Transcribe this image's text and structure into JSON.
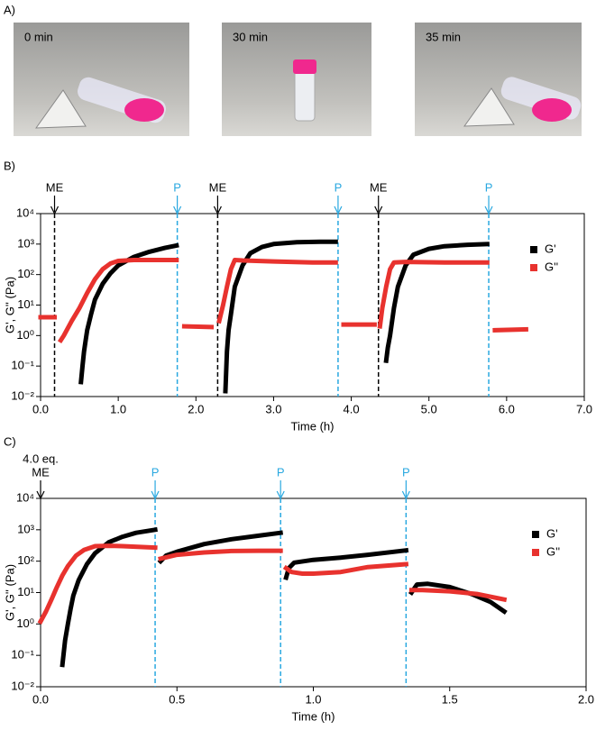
{
  "photos": [
    {
      "panel_label": "A)",
      "captions": [
        "0 min",
        "30 min",
        "35 min"
      ]
    }
  ],
  "chart_data": [
    {
      "type": "line",
      "panel_label": "B)",
      "x_label": "Time (h)",
      "y_label": "G', G'' (Pa)",
      "log_y": true,
      "legend": "upper right",
      "xlim": [
        0,
        7
      ],
      "ylim": [
        0.01,
        10000
      ],
      "xticks": [
        {
          "value": 0,
          "label": "0.0"
        },
        {
          "value": 1,
          "label": "1.0"
        },
        {
          "value": 2,
          "label": "2.0"
        },
        {
          "value": 3,
          "label": "3.0"
        },
        {
          "value": 4,
          "label": "4.0"
        },
        {
          "value": 5,
          "label": "5.0"
        },
        {
          "value": 6,
          "label": "6.0"
        },
        {
          "value": 7,
          "label": "7.0"
        }
      ],
      "yticks": [
        {
          "value": 0.01,
          "label": "10⁻²"
        },
        {
          "value": 0.1,
          "label": "10⁻¹"
        },
        {
          "value": 1,
          "label": "10⁰"
        },
        {
          "value": 10,
          "label": "10¹"
        },
        {
          "value": 100,
          "label": "10²"
        },
        {
          "value": 1000,
          "label": "10³"
        },
        {
          "value": 10000,
          "label": "10⁴"
        }
      ],
      "annotations": [
        {
          "lines": [
            "ME"
          ],
          "x": 0.18,
          "color": "#000000"
        },
        {
          "lines": [
            "P"
          ],
          "x": 1.76,
          "color": "#29a8e0"
        },
        {
          "lines": [
            "ME"
          ],
          "x": 2.28,
          "color": "#000000"
        },
        {
          "lines": [
            "P"
          ],
          "x": 3.83,
          "color": "#29a8e0"
        },
        {
          "lines": [
            "ME"
          ],
          "x": 4.35,
          "color": "#000000"
        },
        {
          "lines": [
            "P"
          ],
          "x": 5.77,
          "color": "#29a8e0"
        }
      ],
      "series": [
        {
          "name": "G'",
          "color": "#000000",
          "x": [
            0.52,
            0.54,
            0.56,
            0.58,
            0.6,
            0.65,
            0.7,
            0.8,
            0.9,
            1.0,
            1.2,
            1.4,
            1.6,
            1.75,
            null,
            2.38,
            2.4,
            2.42,
            2.45,
            2.5,
            2.6,
            2.7,
            2.85,
            3.0,
            3.3,
            3.6,
            3.8,
            null,
            4.45,
            4.47,
            4.5,
            4.55,
            4.6,
            4.7,
            4.8,
            5.0,
            5.2,
            5.5,
            5.75
          ],
          "values": [
            0.03,
            0.1,
            0.3,
            0.7,
            1.5,
            5,
            15,
            50,
            110,
            200,
            380,
            560,
            750,
            900,
            null,
            0.015,
            0.3,
            1.5,
            5,
            40,
            200,
            500,
            800,
            1000,
            1150,
            1200,
            1200,
            null,
            0.15,
            0.4,
            1,
            8,
            40,
            200,
            450,
            700,
            850,
            950,
            1000
          ]
        },
        {
          "name": "G''",
          "color": "#e8322e",
          "x": [
            0,
            0.18,
            null,
            0.26,
            0.3,
            0.4,
            0.5,
            0.6,
            0.7,
            0.8,
            0.9,
            1.0,
            1.2,
            1.5,
            1.75,
            null,
            1.85,
            2.2,
            null,
            2.3,
            2.35,
            2.4,
            2.45,
            2.5,
            2.6,
            3.0,
            3.5,
            3.8,
            null,
            3.9,
            4.3,
            null,
            4.37,
            4.4,
            4.45,
            4.5,
            4.55,
            4.7,
            5.2,
            5.75,
            null,
            5.85,
            6.25
          ],
          "values": [
            4,
            4,
            null,
            0.7,
            1,
            3,
            8,
            25,
            70,
            150,
            230,
            280,
            300,
            300,
            300,
            null,
            2,
            1.9,
            null,
            3,
            10,
            40,
            150,
            300,
            290,
            270,
            250,
            250,
            null,
            2.3,
            2.3,
            null,
            2,
            8,
            40,
            150,
            250,
            260,
            250,
            250,
            null,
            1.5,
            1.6
          ]
        }
      ]
    },
    {
      "type": "line",
      "panel_label": "C)",
      "x_label": "Time (h)",
      "y_label": "G', G'' (Pa)",
      "log_y": true,
      "legend": "upper right",
      "xlim": [
        0,
        2
      ],
      "ylim": [
        0.01,
        10000
      ],
      "xticks": [
        {
          "value": 0,
          "label": "0.0"
        },
        {
          "value": 0.5,
          "label": "0.5"
        },
        {
          "value": 1,
          "label": "1.0"
        },
        {
          "value": 1.5,
          "label": "1.5"
        },
        {
          "value": 2,
          "label": "2.0"
        }
      ],
      "yticks": [
        {
          "value": 0.01,
          "label": "10⁻²"
        },
        {
          "value": 0.1,
          "label": "10⁻¹"
        },
        {
          "value": 1,
          "label": "10⁰"
        },
        {
          "value": 10,
          "label": "10¹"
        },
        {
          "value": 100,
          "label": "10²"
        },
        {
          "value": 1000,
          "label": "10³"
        },
        {
          "value": 10000,
          "label": "10⁴"
        }
      ],
      "annotations": [
        {
          "lines": [
            "4.0 eq.",
            "ME"
          ],
          "x": 0,
          "color": "#000000"
        },
        {
          "lines": [
            "P"
          ],
          "x": 0.42,
          "color": "#29a8e0"
        },
        {
          "lines": [
            "P"
          ],
          "x": 0.88,
          "color": "#29a8e0"
        },
        {
          "lines": [
            "P"
          ],
          "x": 1.34,
          "color": "#29a8e0"
        }
      ],
      "series": [
        {
          "name": "G'",
          "color": "#000000",
          "x": [
            0.08,
            0.09,
            0.1,
            0.11,
            0.12,
            0.14,
            0.17,
            0.2,
            0.25,
            0.3,
            0.35,
            0.42,
            null,
            0.44,
            0.46,
            0.5,
            0.6,
            0.7,
            0.8,
            0.88,
            null,
            0.9,
            0.91,
            0.93,
            1.0,
            1.1,
            1.2,
            1.34,
            null,
            1.36,
            1.38,
            1.42,
            1.5,
            1.58,
            1.65,
            1.7
          ],
          "values": [
            0.05,
            0.3,
            1,
            3,
            8,
            25,
            80,
            180,
            400,
            600,
            800,
            1000,
            null,
            100,
            150,
            200,
            350,
            500,
            650,
            800,
            null,
            30,
            60,
            90,
            110,
            130,
            160,
            220,
            null,
            10,
            18,
            19,
            15,
            9,
            5,
            2.5
          ]
        },
        {
          "name": "G''",
          "color": "#e8322e",
          "x": [
            0,
            0.02,
            0.04,
            0.06,
            0.08,
            0.1,
            0.13,
            0.16,
            0.2,
            0.25,
            0.3,
            0.42,
            null,
            0.44,
            0.5,
            0.6,
            0.7,
            0.8,
            0.88,
            null,
            0.9,
            0.92,
            0.96,
            1.0,
            1.1,
            1.2,
            1.34,
            null,
            1.36,
            1.4,
            1.5,
            1.6,
            1.7
          ],
          "values": [
            1.2,
            2.5,
            6,
            15,
            35,
            70,
            150,
            230,
            300,
            310,
            300,
            270,
            null,
            120,
            160,
            190,
            210,
            215,
            215,
            null,
            60,
            45,
            40,
            40,
            45,
            65,
            80,
            null,
            12,
            12,
            11,
            9,
            6
          ]
        }
      ]
    }
  ]
}
